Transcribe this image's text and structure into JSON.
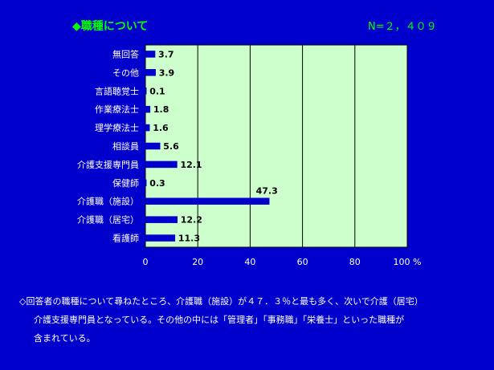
{
  "title": "◆職種について",
  "n_label": "N=２，４０９",
  "colors": {
    "background": "#0000cc",
    "plot_area": "#ccffcc",
    "bar": "#0000cc",
    "title": "#00ff00",
    "text": "#ffffff"
  },
  "chart_data": {
    "type": "bar",
    "orientation": "horizontal",
    "categories": [
      "無回答",
      "その他",
      "言語聴覚士",
      "作業療法士",
      "理学療法士",
      "相談員",
      "介護支援専門員",
      "保健師",
      "介護職（施設）",
      "介護職（居宅）",
      "看護師"
    ],
    "values": [
      3.7,
      3.9,
      0.1,
      1.8,
      1.6,
      5.6,
      12.1,
      0.3,
      47.3,
      12.2,
      11.3
    ],
    "value_labels": [
      "3.7",
      "3.9",
      "0.1",
      "1.8",
      "1.6",
      "5.6",
      "12.1",
      "0.3",
      "47.3",
      "12.2",
      "11.3"
    ],
    "xlim": [
      0,
      100
    ],
    "x_ticks": [
      0,
      20,
      40,
      60,
      80,
      100
    ],
    "x_tick_labels": [
      "0",
      "20",
      "40",
      "60",
      "80",
      "100 %"
    ],
    "grid": true
  },
  "caption": [
    "◇回答者の職種について尋ねたところ、介護職（施設）が４７．３％と最も多く、次いで介護（居宅）",
    "介護支援専門員となっている。その他の中には「管理者」「事務職」「栄養士」といった職種が",
    "含まれている。"
  ]
}
